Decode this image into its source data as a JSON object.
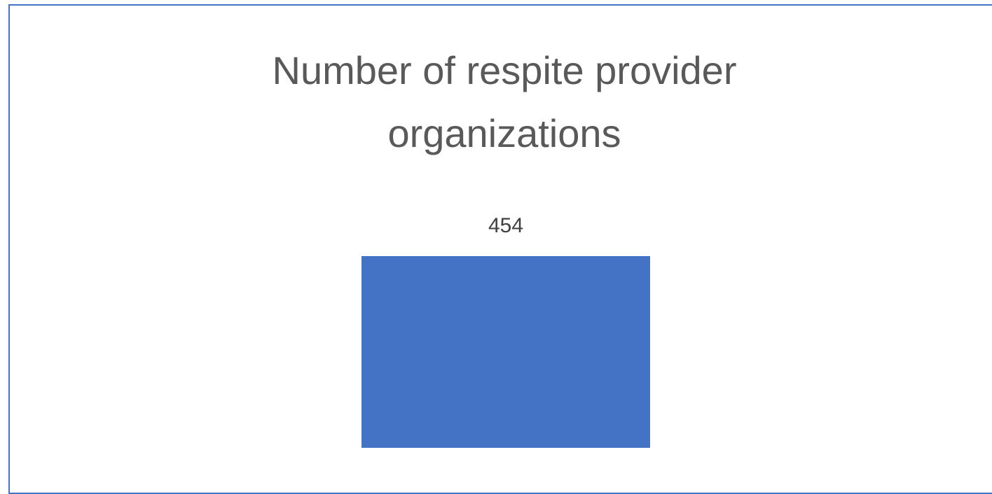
{
  "chart_data": {
    "type": "bar",
    "title": "Number of respite provider organizations",
    "categories": [
      ""
    ],
    "values": [
      454
    ],
    "data_labels": [
      "454"
    ],
    "ylim": [
      0,
      454
    ],
    "grid": false,
    "legend": "none",
    "bar_color": "#4472C4",
    "border_color": "#4472C4"
  }
}
